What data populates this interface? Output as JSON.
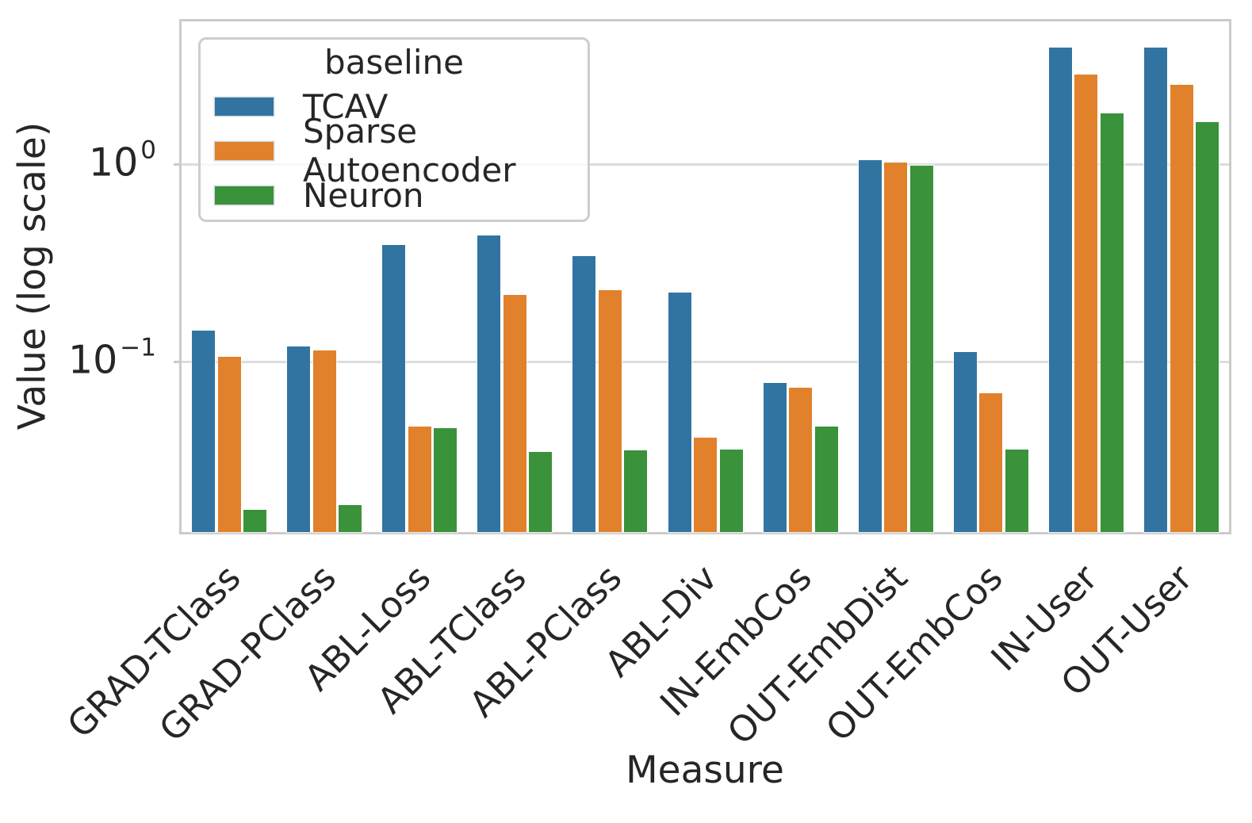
{
  "chart_data": {
    "type": "bar",
    "title": "",
    "xlabel": "Measure",
    "ylabel": "Value (log scale)",
    "yscale": "log",
    "ylim": [
      0.0137,
      5.28
    ],
    "grid": "horizontal gridlines at 1 and 0.1",
    "legend_title": "baseline",
    "legend_position": "upper left",
    "categories": [
      "GRAD-TClass",
      "GRAD-PClass",
      "ABL-Loss",
      "ABL-TClass",
      "ABL-PClass",
      "ABL-Div",
      "IN-EmbCos",
      "OUT-EmbDist",
      "OUT-EmbCos",
      "IN-User",
      "OUT-User"
    ],
    "series": [
      {
        "name": "TCAV",
        "color": "#3274a1",
        "values": [
          0.144,
          0.119,
          0.39,
          0.435,
          0.343,
          0.224,
          0.078,
          1.05,
          0.112,
          3.9,
          3.9
        ]
      },
      {
        "name": "Sparse Autoencoder",
        "color": "#e1812c",
        "values": [
          0.106,
          0.114,
          0.047,
          0.218,
          0.231,
          0.0413,
          0.0737,
          1.02,
          0.069,
          2.84,
          2.52
        ]
      },
      {
        "name": "Neuron",
        "color": "#3a923a",
        "values": [
          0.0177,
          0.0187,
          0.046,
          0.0349,
          0.0355,
          0.0357,
          0.047,
          0.985,
          0.0357,
          1.81,
          1.63
        ]
      }
    ],
    "yticks": [
      {
        "base": "10",
        "exp": "0",
        "value": 1
      },
      {
        "base": "10",
        "exp": "−1",
        "value": 0.1
      }
    ]
  }
}
